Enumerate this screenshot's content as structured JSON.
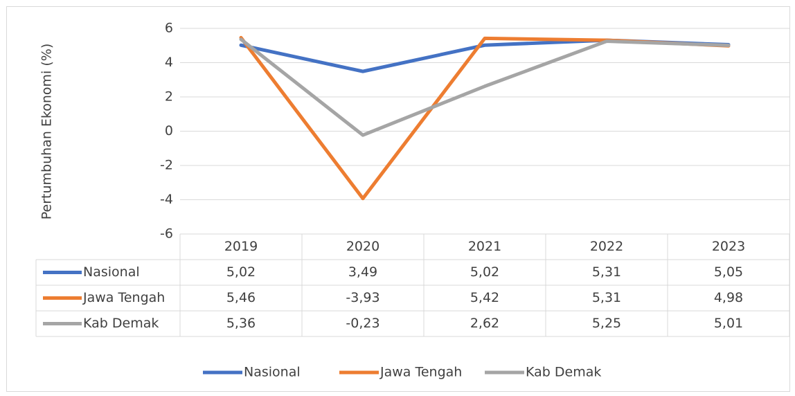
{
  "chart_data": {
    "type": "line",
    "y_label": "Pertumbuhan Ekonomi (%)",
    "categories": [
      "2019",
      "2020",
      "2021",
      "2022",
      "2023"
    ],
    "series": [
      {
        "name": "Nasional",
        "color": "#4472c4",
        "values": [
          5.02,
          3.49,
          5.02,
          5.31,
          5.05
        ],
        "value_labels": [
          "5,02",
          "3,49",
          "5,02",
          "5,31",
          "5,05"
        ]
      },
      {
        "name": "Jawa Tengah",
        "color": "#ed7d31",
        "values": [
          5.46,
          -3.93,
          5.42,
          5.31,
          4.98
        ],
        "value_labels": [
          "5,46",
          "-3,93",
          "5,42",
          "5,31",
          "4,98"
        ]
      },
      {
        "name": "Kab Demak",
        "color": "#a5a5a5",
        "values": [
          5.36,
          -0.23,
          2.62,
          5.25,
          5.01
        ],
        "value_labels": [
          "5,36",
          "-0,23",
          "2,62",
          "5,25",
          "5,01"
        ]
      }
    ],
    "ylim": [
      -6,
      6
    ],
    "yticks": [
      -6,
      -4,
      -2,
      0,
      2,
      4,
      6
    ],
    "grid": true,
    "legend": "bottom"
  }
}
